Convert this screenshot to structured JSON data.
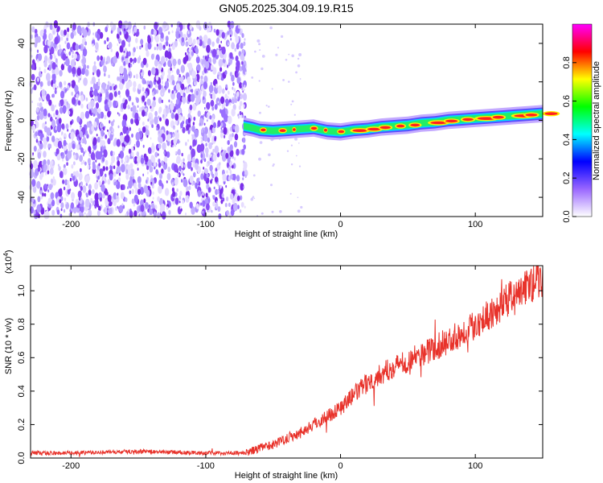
{
  "title": "GN05.2025.304.09.19.R15",
  "chart_data": [
    {
      "type": "heatmap",
      "title": "GN05.2025.304.09.19.R15",
      "xlabel": "Height of straight line (km)",
      "ylabel": "Frequency (Hz)",
      "xlim": [
        -230,
        150
      ],
      "ylim": [
        -50,
        50
      ],
      "xticks": [
        -200,
        -100,
        0,
        100
      ],
      "yticks": [
        -40,
        -20,
        0,
        20,
        40
      ],
      "noise_region_x": [
        -230,
        -70
      ],
      "signal_track": {
        "x": [
          -72,
          -65,
          -60,
          -50,
          -40,
          -30,
          -20,
          -10,
          0,
          10,
          20,
          30,
          40,
          50,
          60,
          70,
          80,
          90,
          100,
          110,
          120,
          130,
          140,
          150
        ],
        "y": [
          -3,
          -4,
          -5,
          -5.5,
          -5,
          -4.5,
          -4,
          -5.5,
          -6,
          -5,
          -4.5,
          -3.5,
          -3,
          -2.5,
          -1.5,
          -1,
          0,
          0.5,
          1,
          1.5,
          2,
          2.5,
          3,
          3.5
        ]
      },
      "colorbar": {
        "label": "Normalized spectral amplitude",
        "range": [
          0.0,
          1.0
        ],
        "ticks": [
          "0.0",
          "0.2",
          "0.4",
          "0.6",
          "0.8"
        ],
        "colors": [
          "#ffffff",
          "#9966ff",
          "#0000ff",
          "#00ffff",
          "#00ff00",
          "#ffff00",
          "#ff0000",
          "#ff00ff"
        ]
      }
    },
    {
      "type": "line",
      "xlabel": "Height of straight line (km)",
      "ylabel": "SNR (10 * v/v)",
      "yscale_label": "(x10",
      "yscale_exp": "4",
      "yscale_close": ")",
      "xlim": [
        -230,
        150
      ],
      "ylim": [
        0,
        1.15
      ],
      "xticks": [
        -200,
        -100,
        0,
        100
      ],
      "yticks": [
        "0.0",
        "0.2",
        "0.4",
        "0.6",
        "0.8",
        "1.0"
      ],
      "line_color": "#e8322a",
      "series": [
        {
          "x": [
            -230,
            -200,
            -150,
            -100,
            -70,
            -60,
            -50,
            -40,
            -30,
            -20,
            -10,
            0,
            10,
            20,
            30,
            40,
            50,
            60,
            70,
            80,
            90,
            100,
            110,
            120,
            130,
            140,
            150
          ],
          "values": [
            0.03,
            0.03,
            0.04,
            0.03,
            0.03,
            0.06,
            0.08,
            0.12,
            0.15,
            0.2,
            0.25,
            0.3,
            0.38,
            0.45,
            0.5,
            0.55,
            0.58,
            0.62,
            0.66,
            0.7,
            0.75,
            0.8,
            0.86,
            0.92,
            0.98,
            1.03,
            1.08
          ]
        }
      ]
    }
  ]
}
